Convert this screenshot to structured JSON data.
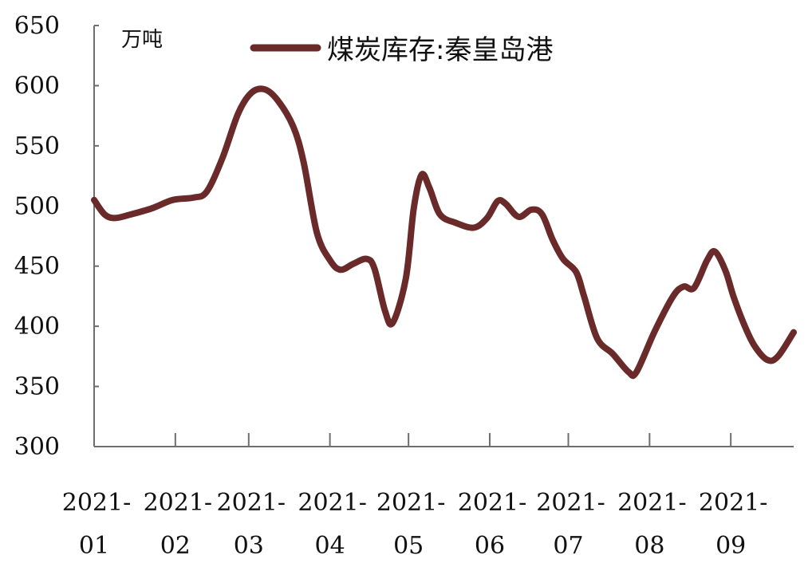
{
  "chart_data": {
    "type": "line",
    "title": "",
    "unit_label": "万吨",
    "xlabel": "",
    "ylabel": "",
    "ylim": [
      300,
      650
    ],
    "yticks": [
      300,
      350,
      400,
      450,
      500,
      550,
      600,
      650
    ],
    "grid": false,
    "legend_position": "top",
    "x_categories": [
      {
        "year": "2021-",
        "month": "01"
      },
      {
        "year": "2021-",
        "month": "02"
      },
      {
        "year": "2021-",
        "month": "03"
      },
      {
        "year": "2021-",
        "month": "04"
      },
      {
        "year": "2021-",
        "month": "05"
      },
      {
        "year": "2021-",
        "month": "06"
      },
      {
        "year": "2021-",
        "month": "07"
      },
      {
        "year": "2021-",
        "month": "08"
      },
      {
        "year": "2021-",
        "month": "09"
      }
    ],
    "series": [
      {
        "name": "煤炭库存:秦皇岛港",
        "color": "#6b2a2a",
        "points": [
          [
            "2021-01-01",
            505
          ],
          [
            "2021-01-05",
            493
          ],
          [
            "2021-01-09",
            490
          ],
          [
            "2021-01-15",
            493
          ],
          [
            "2021-01-23",
            498
          ],
          [
            "2021-01-31",
            505
          ],
          [
            "2021-02-08",
            507
          ],
          [
            "2021-02-13",
            512
          ],
          [
            "2021-02-19",
            540
          ],
          [
            "2021-02-25",
            577
          ],
          [
            "2021-03-02",
            594
          ],
          [
            "2021-03-07",
            597
          ],
          [
            "2021-03-12",
            588
          ],
          [
            "2021-03-18",
            566
          ],
          [
            "2021-03-22",
            536
          ],
          [
            "2021-03-27",
            478
          ],
          [
            "2021-04-01",
            455
          ],
          [
            "2021-04-05",
            447
          ],
          [
            "2021-04-10",
            452
          ],
          [
            "2021-04-15",
            456
          ],
          [
            "2021-04-18",
            448
          ],
          [
            "2021-04-22",
            413
          ],
          [
            "2021-04-25",
            403
          ],
          [
            "2021-04-30",
            440
          ],
          [
            "2021-05-03",
            498
          ],
          [
            "2021-05-06",
            526
          ],
          [
            "2021-05-09",
            515
          ],
          [
            "2021-05-13",
            493
          ],
          [
            "2021-05-19",
            486
          ],
          [
            "2021-05-26",
            482
          ],
          [
            "2021-05-31",
            490
          ],
          [
            "2021-06-04",
            504
          ],
          [
            "2021-06-07",
            502
          ],
          [
            "2021-06-12",
            491
          ],
          [
            "2021-06-17",
            497
          ],
          [
            "2021-06-21",
            493
          ],
          [
            "2021-06-25",
            472
          ],
          [
            "2021-06-29",
            456
          ],
          [
            "2021-07-04",
            445
          ],
          [
            "2021-07-07",
            425
          ],
          [
            "2021-07-12",
            390
          ],
          [
            "2021-07-18",
            377
          ],
          [
            "2021-07-24",
            362
          ],
          [
            "2021-07-27",
            362
          ],
          [
            "2021-08-03",
            396
          ],
          [
            "2021-08-10",
            425
          ],
          [
            "2021-08-14",
            433
          ],
          [
            "2021-08-18",
            432
          ],
          [
            "2021-08-23",
            455
          ],
          [
            "2021-08-26",
            462
          ],
          [
            "2021-08-30",
            446
          ],
          [
            "2021-09-02",
            425
          ],
          [
            "2021-09-06",
            402
          ],
          [
            "2021-09-10",
            384
          ],
          [
            "2021-09-15",
            372
          ],
          [
            "2021-09-19",
            375
          ],
          [
            "2021-09-25",
            395
          ]
        ]
      }
    ]
  }
}
